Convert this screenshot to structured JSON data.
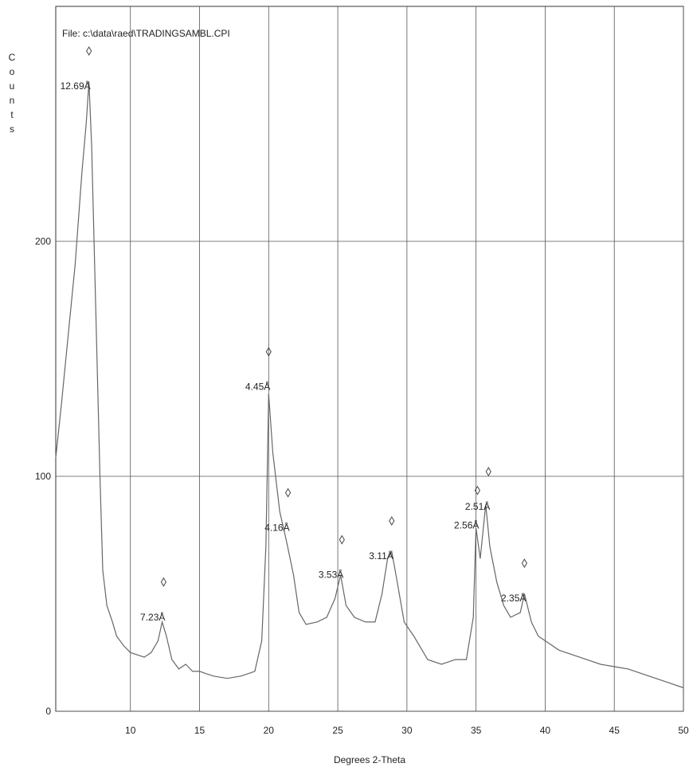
{
  "chart_data": {
    "type": "line",
    "file": "File: c:\\data\\raed\\TRADINGSAMBL.CPI",
    "ylabel": "Counts",
    "xlabel": "Degrees 2-Theta",
    "xlim": [
      4.6,
      50
    ],
    "ylim": [
      0,
      300
    ],
    "xticks": [
      10,
      15,
      20,
      25,
      30,
      35,
      40,
      45,
      50
    ],
    "yticks": [
      0,
      100,
      200
    ],
    "grid": true,
    "x": [
      4.6,
      5.0,
      5.5,
      6.0,
      6.5,
      6.8,
      7.0,
      7.2,
      7.5,
      7.8,
      8.0,
      8.3,
      8.7,
      9.0,
      9.5,
      10,
      10.5,
      11,
      11.5,
      12,
      12.3,
      12.6,
      13,
      13.5,
      14,
      14.5,
      15,
      16,
      17,
      18,
      19,
      19.5,
      19.8,
      20.0,
      20.3,
      20.8,
      21.3,
      21.8,
      22.2,
      22.7,
      23.5,
      24.2,
      24.8,
      25.2,
      25.6,
      26.2,
      27,
      27.7,
      28.2,
      28.6,
      28.9,
      29.3,
      29.8,
      30.5,
      31.5,
      32.5,
      33.5,
      34.3,
      34.8,
      35.0,
      35.3,
      35.7,
      36.0,
      36.5,
      37.0,
      37.5,
      38.2,
      38.5,
      39.0,
      39.5,
      40,
      41,
      42,
      43,
      44,
      45,
      46,
      47,
      48,
      49,
      50
    ],
    "series": [
      {
        "name": "Counts",
        "color": "#666666",
        "values": [
          108,
          130,
          160,
          190,
          230,
          250,
          268,
          240,
          170,
          100,
          60,
          45,
          38,
          32,
          28,
          25,
          24,
          23,
          25,
          30,
          38,
          32,
          22,
          18,
          20,
          17,
          17,
          15,
          14,
          15,
          17,
          30,
          70,
          135,
          110,
          85,
          72,
          58,
          42,
          37,
          38,
          40,
          48,
          58,
          45,
          40,
          38,
          38,
          50,
          65,
          68,
          55,
          38,
          32,
          22,
          20,
          22,
          22,
          40,
          78,
          65,
          88,
          70,
          55,
          45,
          40,
          42,
          50,
          38,
          32,
          30,
          26,
          24,
          22,
          20,
          19,
          18,
          16,
          14,
          12,
          10
        ]
      }
    ],
    "peaks": [
      {
        "label": "12.69Å",
        "x": 7.0,
        "y": 281
      },
      {
        "label": "7.23Å",
        "x": 12.4,
        "y": 55
      },
      {
        "label": "4.45Å",
        "x": 20.0,
        "y": 153
      },
      {
        "label": "4.16Å",
        "x": 21.4,
        "y": 93
      },
      {
        "label": "3.53Å",
        "x": 25.3,
        "y": 73
      },
      {
        "label": "3.11Å",
        "x": 28.9,
        "y": 81
      },
      {
        "label": "2.56Å",
        "x": 35.1,
        "y": 94
      },
      {
        "label": "2.51Å",
        "x": 35.9,
        "y": 102
      },
      {
        "label": "2.35Å",
        "x": 38.5,
        "y": 63
      }
    ]
  }
}
